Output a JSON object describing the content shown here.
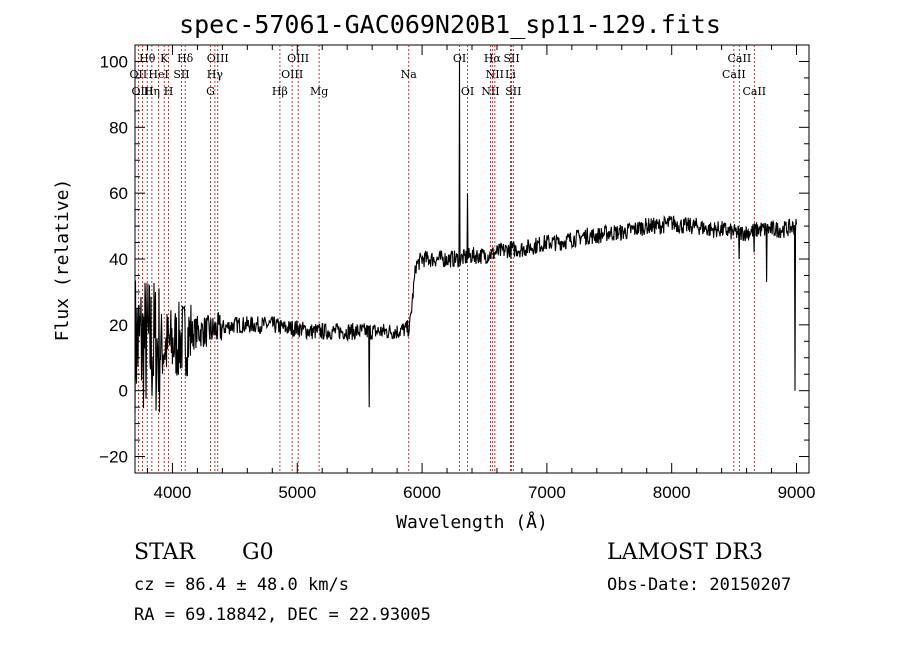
{
  "chart_data": {
    "type": "line",
    "title": "spec-57061-GAC069N20B1_sp11-129.fits",
    "xlabel": "Wavelength (Å)",
    "ylabel": "Flux (relative)",
    "xlim": [
      3700,
      9100
    ],
    "ylim": [
      -25,
      105
    ],
    "xticks": [
      4000,
      5000,
      6000,
      7000,
      8000,
      9000
    ],
    "yticks": [
      -20,
      0,
      20,
      40,
      60,
      80,
      100
    ],
    "xtick_labels": [
      "4000",
      "5000",
      "6000",
      "7000",
      "8000",
      "9000"
    ],
    "ytick_labels": [
      "−20",
      "0",
      "20",
      "40",
      "60",
      "80",
      "100"
    ],
    "line_color": "#000000",
    "marker_color": "#b22222",
    "continuum": [
      [
        3700,
        15
      ],
      [
        3800,
        14
      ],
      [
        3900,
        13
      ],
      [
        4000,
        14
      ],
      [
        4100,
        16
      ],
      [
        4200,
        18
      ],
      [
        4300,
        18
      ],
      [
        4400,
        19
      ],
      [
        4500,
        20
      ],
      [
        4600,
        20
      ],
      [
        4700,
        20
      ],
      [
        4800,
        20
      ],
      [
        4900,
        19
      ],
      [
        5000,
        19
      ],
      [
        5100,
        18
      ],
      [
        5200,
        18
      ],
      [
        5300,
        18
      ],
      [
        5400,
        18
      ],
      [
        5500,
        18
      ],
      [
        5600,
        18
      ],
      [
        5700,
        18
      ],
      [
        5800,
        18
      ],
      [
        5900,
        19
      ],
      [
        5950,
        38
      ],
      [
        6000,
        40
      ],
      [
        6100,
        40
      ],
      [
        6200,
        40
      ],
      [
        6300,
        40
      ],
      [
        6400,
        41
      ],
      [
        6500,
        41
      ],
      [
        6600,
        42
      ],
      [
        6700,
        43
      ],
      [
        6800,
        43
      ],
      [
        6900,
        44
      ],
      [
        7000,
        45
      ],
      [
        7100,
        45
      ],
      [
        7200,
        46
      ],
      [
        7300,
        47
      ],
      [
        7400,
        47
      ],
      [
        7500,
        48
      ],
      [
        7600,
        48
      ],
      [
        7700,
        49
      ],
      [
        7800,
        50
      ],
      [
        7900,
        50
      ],
      [
        8000,
        51
      ],
      [
        8100,
        50
      ],
      [
        8200,
        50
      ],
      [
        8300,
        49
      ],
      [
        8400,
        49
      ],
      [
        8500,
        48
      ],
      [
        8600,
        48
      ],
      [
        8700,
        49
      ],
      [
        8800,
        49
      ],
      [
        8900,
        49
      ],
      [
        9000,
        50
      ]
    ],
    "features": [
      {
        "x": 5577,
        "y": -5
      },
      {
        "x": 6300,
        "y": 100
      },
      {
        "x": 6364,
        "y": 60
      },
      {
        "x": 8542,
        "y": 40
      },
      {
        "x": 8662,
        "y": 42
      },
      {
        "x": 8760,
        "y": 33
      },
      {
        "x": 8990,
        "y": 0
      }
    ],
    "lines": [
      {
        "name": "Hθ",
        "x": 3798,
        "row": 1
      },
      {
        "name": "OII",
        "x": 3727,
        "row": 2
      },
      {
        "name": "OIII",
        "x": 3760,
        "row": 3
      },
      {
        "name": "K",
        "x": 3934,
        "row": 1
      },
      {
        "name": "HeI",
        "x": 3889,
        "row": 2
      },
      {
        "name": "Hη",
        "x": 3835,
        "row": 3
      },
      {
        "name": "SII",
        "x": 4072,
        "row": 2
      },
      {
        "name": "H",
        "x": 3969,
        "row": 3
      },
      {
        "name": "Hδ",
        "x": 4102,
        "row": 1
      },
      {
        "name": "OIII",
        "x": 4363,
        "row": 1
      },
      {
        "name": "Hγ",
        "x": 4340,
        "row": 2
      },
      {
        "name": "G",
        "x": 4305,
        "row": 3
      },
      {
        "name": "OIII",
        "x": 5007,
        "row": 1
      },
      {
        "name": "OIII",
        "x": 4959,
        "row": 2
      },
      {
        "name": "Hβ",
        "x": 4861,
        "row": 3
      },
      {
        "name": "Mg",
        "x": 5175,
        "row": 3
      },
      {
        "name": "Na",
        "x": 5893,
        "row": 2
      },
      {
        "name": "OI",
        "x": 6300,
        "row": 1
      },
      {
        "name": "OI",
        "x": 6364,
        "row": 3
      },
      {
        "name": "Hα",
        "x": 6563,
        "row": 1
      },
      {
        "name": "SII",
        "x": 6717,
        "row": 1
      },
      {
        "name": "NII",
        "x": 6583,
        "row": 2
      },
      {
        "name": "Li",
        "x": 6708,
        "row": 2
      },
      {
        "name": "NII",
        "x": 6548,
        "row": 3
      },
      {
        "name": "SII",
        "x": 6731,
        "row": 3
      },
      {
        "name": "CaII",
        "x": 8542,
        "row": 1
      },
      {
        "name": "CaII",
        "x": 8498,
        "row": 2
      },
      {
        "name": "CaII",
        "x": 8662,
        "row": 3
      }
    ]
  },
  "info": {
    "object_class": "STAR",
    "subclass": "G0",
    "survey": "LAMOST DR3",
    "cz": "cz = 86.4 ± 48.0 km/s",
    "obs_date": "Obs-Date: 20150207",
    "radec": "RA =  69.18842, DEC =  22.93005"
  }
}
